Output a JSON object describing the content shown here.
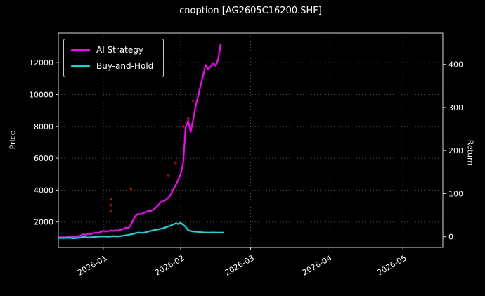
{
  "window": {
    "title": "cnoption [AG2605C16200.SHF]"
  },
  "chart_data": {
    "type": "line",
    "title": "cnoption [AG2605C16200.SHF]",
    "legend_position": "upper-left",
    "background": "#000000",
    "axes": {
      "left_label": "Price",
      "right_label": "Return",
      "x_tick_labels": [
        "2026-01",
        "2026-02",
        "2026-03",
        "2026-04",
        "2026-05"
      ],
      "x_tick_pos": [
        16,
        47,
        75,
        106,
        136
      ],
      "x_range": [
        -2,
        152
      ],
      "left_ticks": [
        2000,
        4000,
        6000,
        8000,
        10000,
        12000
      ],
      "left_range": [
        400,
        13860
      ],
      "right_ticks": [
        0,
        100,
        200,
        300,
        400
      ],
      "right_range": [
        -25,
        473
      ],
      "grid": "dotted"
    },
    "series": [
      {
        "name": "AI Strategy",
        "slug": "ai-strategy",
        "color": "#ff00ff",
        "axis": "left",
        "x": [
          -2,
          -1,
          0,
          1,
          2,
          3,
          4,
          5,
          6,
          7,
          8,
          9,
          10,
          11,
          12,
          13,
          14,
          15,
          16,
          17,
          18,
          19,
          20,
          21,
          22,
          23,
          24,
          25,
          26,
          27,
          28,
          29,
          30,
          31,
          32,
          33,
          34,
          35,
          36,
          37,
          38,
          39,
          40,
          41,
          42,
          43,
          44,
          45,
          46,
          47,
          48,
          49,
          50,
          51,
          52,
          53,
          54,
          55,
          56,
          57,
          58,
          59,
          60,
          61,
          62,
          63
        ],
        "y": [
          1060,
          1040,
          1055,
          1035,
          1075,
          1060,
          1085,
          1070,
          1110,
          1160,
          1230,
          1200,
          1260,
          1240,
          1300,
          1330,
          1310,
          1380,
          1450,
          1400,
          1430,
          1470,
          1440,
          1480,
          1460,
          1520,
          1560,
          1650,
          1620,
          1800,
          2150,
          2400,
          2520,
          2480,
          2560,
          2620,
          2700,
          2680,
          2780,
          2900,
          3050,
          3250,
          3300,
          3380,
          3520,
          3700,
          4050,
          4300,
          4650,
          5000,
          5700,
          7950,
          8350,
          7650,
          8400,
          9300,
          9900,
          10600,
          11200,
          11850,
          11600,
          11750,
          11950,
          11800,
          12200,
          13150
        ]
      },
      {
        "name": "Buy-and-Hold",
        "slug": "buy-and-hold",
        "color": "#00dede",
        "axis": "left",
        "x": [
          -2,
          0,
          2,
          4,
          6,
          8,
          10,
          12,
          14,
          16,
          18,
          20,
          22,
          24,
          26,
          28,
          30,
          32,
          34,
          36,
          38,
          40,
          42,
          44,
          45,
          46,
          47,
          48,
          49,
          50,
          52,
          54,
          56,
          58,
          60,
          62,
          64
        ],
        "y": [
          1000,
          985,
          1010,
          980,
          1005,
          1060,
          1030,
          1055,
          1085,
          1100,
          1075,
          1110,
          1095,
          1140,
          1190,
          1260,
          1340,
          1320,
          1400,
          1480,
          1540,
          1620,
          1720,
          1850,
          1920,
          1880,
          1950,
          1830,
          1700,
          1480,
          1400,
          1380,
          1350,
          1330,
          1345,
          1330,
          1340
        ]
      }
    ],
    "markers": {
      "name": "trade-markers",
      "color": "#cc0000",
      "points": [
        [
          19,
          3440
        ],
        [
          19,
          3060
        ],
        [
          19,
          2700
        ],
        [
          27,
          4100
        ],
        [
          42,
          4900
        ],
        [
          45,
          5700
        ],
        [
          48,
          8000
        ],
        [
          50,
          8500
        ],
        [
          52,
          9600
        ]
      ]
    }
  }
}
